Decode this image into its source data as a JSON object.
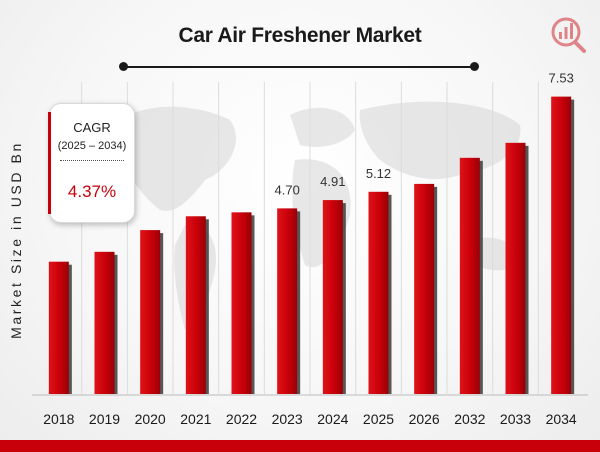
{
  "title": "Car Air Freshener Market",
  "cagr": {
    "label": "CAGR",
    "range": "(2025 – 2034)",
    "value": "4.37%"
  },
  "colors": {
    "bar": "#c8000a",
    "bar_shadow": "#3a3a3a",
    "accent": "#c8000a"
  },
  "icons": [
    "market-research-logo-icon",
    "world-map-background"
  ],
  "chart_data": {
    "type": "bar",
    "title": "Car Air Freshener Market",
    "xlabel": "",
    "ylabel": "Market Size in USD Bn",
    "categories": [
      "2018",
      "2019",
      "2020",
      "2021",
      "2022",
      "2023",
      "2024",
      "2025",
      "2026",
      "2032",
      "2033",
      "2034"
    ],
    "values": [
      3.35,
      3.6,
      4.15,
      4.5,
      4.6,
      4.7,
      4.91,
      5.12,
      5.32,
      5.98,
      6.36,
      7.53
    ],
    "data_labels": [
      "",
      "",
      "",
      "",
      "",
      "4.70",
      "4.91",
      "5.12",
      "",
      "",
      "",
      "7.53"
    ],
    "ylim": [
      0,
      7.9
    ],
    "grid": "vertical",
    "legend": "none"
  }
}
